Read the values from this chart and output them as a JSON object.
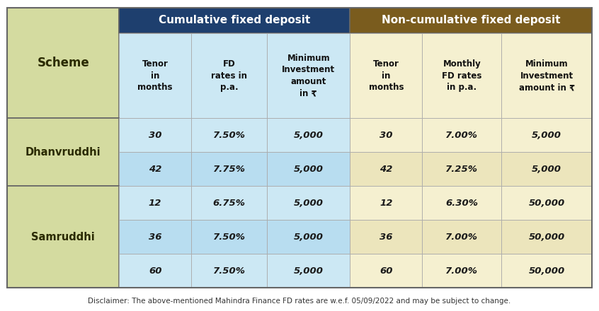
{
  "title_cumulative": "Cumulative fixed deposit",
  "title_noncumulative": "Non-cumulative fixed deposit",
  "disclaimer": "Disclaimer: The above-mentioned Mahindra Finance FD rates are w.e.f. 05/09/2022 and may be subject to change.",
  "col_headers": [
    "Scheme",
    "Tenor\nin\nmonths",
    "FD\nrates in\np.a.",
    "Minimum\nInvestment\namount\nin ₹",
    "Tenor\nin\nmonths",
    "Monthly\nFD rates\nin p.a.",
    "Minimum\nInvestment\namount in ₹"
  ],
  "rows": [
    [
      "Dhanvruddhi",
      "30",
      "7.50%",
      "5,000",
      "30",
      "7.00%",
      "5,000"
    ],
    [
      "Dhanvruddhi",
      "42",
      "7.75%",
      "5,000",
      "42",
      "7.25%",
      "5,000"
    ],
    [
      "Samruddhi",
      "12",
      "6.75%",
      "5,000",
      "12",
      "6.30%",
      "50,000"
    ],
    [
      "Samruddhi",
      "36",
      "7.50%",
      "5,000",
      "36",
      "7.00%",
      "50,000"
    ],
    [
      "Samruddhi",
      "60",
      "7.50%",
      "5,000",
      "60",
      "7.00%",
      "50,000"
    ]
  ],
  "color_header_cumulative": "#1e3f6e",
  "color_header_noncumulative": "#7a5c1e",
  "color_scheme_col": "#d4dba0",
  "color_cumulative_body": "#cce8f4",
  "color_noncumulative_body": "#f5f0d0",
  "color_header_text": "#ffffff",
  "color_scheme_text": "#2a2a00",
  "color_body_text": "#1a1a1a",
  "color_border": "#aaaaaa",
  "color_outer_border": "#666666",
  "color_disclaimer": "#333333",
  "figsize": [
    8.46,
    4.4
  ],
  "dpi": 100
}
